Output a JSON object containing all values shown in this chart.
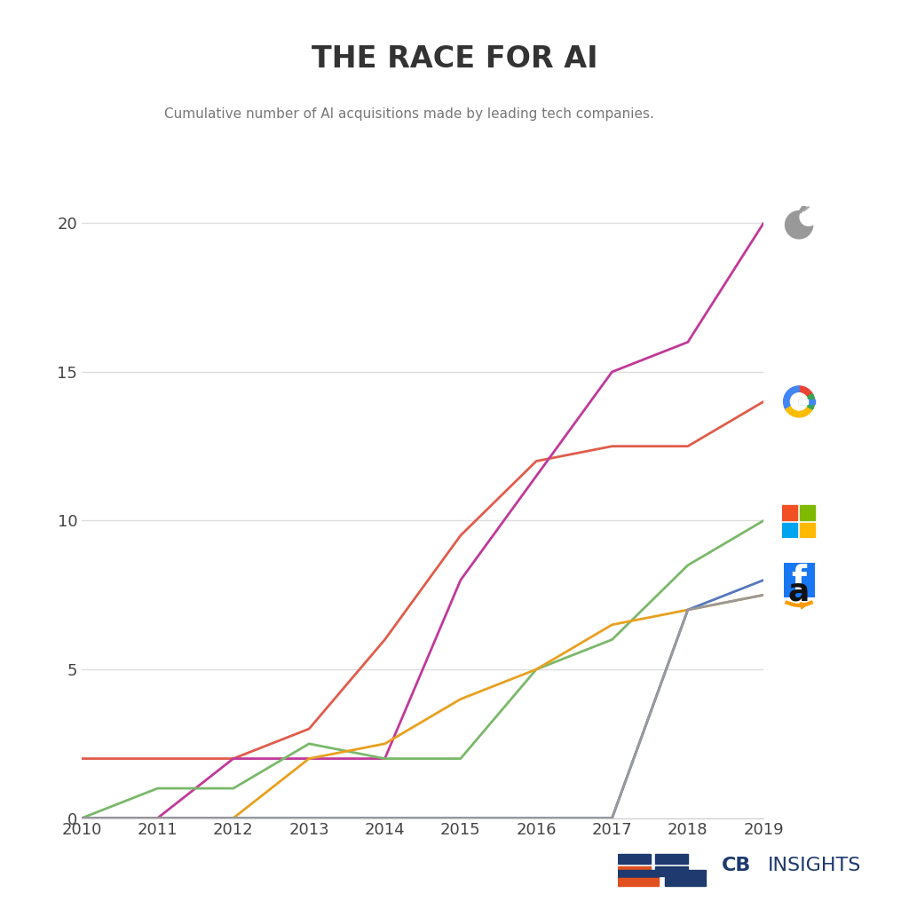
{
  "title": "THE RACE FOR AI",
  "subtitle": "Cumulative number of AI acquisitions made by leading tech companies.",
  "years": [
    2010,
    2011,
    2012,
    2013,
    2014,
    2015,
    2016,
    2017,
    2018,
    2019
  ],
  "series": {
    "Apple": {
      "color": "#c0399a",
      "values": [
        0,
        0,
        2,
        2,
        2,
        8,
        11.5,
        15,
        16,
        20
      ]
    },
    "Google": {
      "color": "#e05c4b",
      "values": [
        2,
        2,
        2,
        3,
        6,
        9.5,
        12,
        12.5,
        12.5,
        14
      ]
    },
    "Microsoft": {
      "color": "#7ab86a",
      "values": [
        0,
        1,
        1,
        2.5,
        2,
        2,
        5,
        6,
        8.5,
        10
      ]
    },
    "Facebook": {
      "color": "#5577bb",
      "values": [
        0,
        0,
        0,
        0,
        0,
        0,
        0,
        0,
        7,
        8
      ]
    },
    "Amazon": {
      "color": "#e8a020",
      "values": [
        0,
        0,
        0,
        2,
        2.5,
        4,
        5,
        6.5,
        7,
        7.5
      ]
    },
    "Gray": {
      "color": "#999999",
      "values": [
        0,
        0,
        0,
        0,
        0,
        0,
        0,
        0,
        7,
        7.5
      ]
    }
  },
  "ylim": [
    0,
    22
  ],
  "yticks": [
    0,
    5,
    10,
    15,
    20
  ],
  "xlim": [
    2010,
    2019
  ],
  "background_color": "#ffffff",
  "grid_color": "#dddddd",
  "title_fontsize": 24,
  "subtitle_fontsize": 11,
  "tick_fontsize": 13
}
